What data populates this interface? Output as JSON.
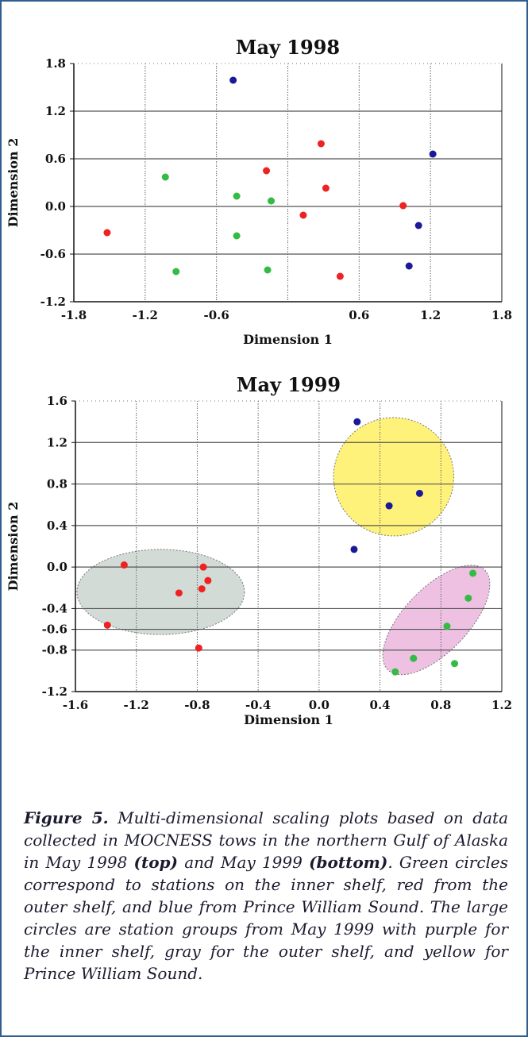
{
  "caption": {
    "label": "Figure 5.",
    "part1": "Multi-dimensional scaling plots based on data collected in MOCNESS tows in the northern Gulf of Alaska in May 1998",
    "top": "(top)",
    "part2": "and May 1999",
    "bottom": "(bottom)",
    "part3": ". Green circles correspond to stations on the inner shelf, red from the outer shelf, and blue from Prince William Sound. The large circles are station groups from May 1999 with purple for the inner shelf, gray for the outer shelf, and yellow for Prince William Sound."
  },
  "colors": {
    "frame": "#2f5e8f",
    "green": "#33bb44",
    "red": "#ee2222",
    "blue": "#1a1a99",
    "yellow_group": "#fff27a",
    "gray_group": "#d2dbd6",
    "purple_group": "#eec0e2"
  },
  "chart_data": [
    {
      "type": "scatter",
      "title": "May 1998",
      "xlabel": "Dimension 1",
      "ylabel": "Dimension 2",
      "xlim": [
        -1.8,
        1.8
      ],
      "ylim": [
        -1.2,
        1.8
      ],
      "xticks": [
        "-1.8",
        "-1.2",
        "-0.6",
        "0.6",
        "1.2",
        "1.8"
      ],
      "yticks": [
        "1.8",
        "1.2",
        "0.6",
        "0.0",
        "-0.6",
        "-1.2"
      ],
      "grid": true,
      "series": [
        {
          "color": "green",
          "points": [
            [
              -1.03,
              0.37
            ],
            [
              -0.43,
              0.13
            ],
            [
              -0.14,
              0.07
            ],
            [
              -0.43,
              -0.37
            ],
            [
              -0.94,
              -0.82
            ],
            [
              -0.17,
              -0.8
            ]
          ]
        },
        {
          "color": "red",
          "points": [
            [
              -1.52,
              -0.33
            ],
            [
              -0.18,
              0.45
            ],
            [
              0.28,
              0.79
            ],
            [
              0.32,
              0.23
            ],
            [
              0.13,
              -0.11
            ],
            [
              0.97,
              0.01
            ],
            [
              0.44,
              -0.88
            ]
          ]
        },
        {
          "color": "blue",
          "points": [
            [
              -0.46,
              1.59
            ],
            [
              1.22,
              0.66
            ],
            [
              1.1,
              -0.24
            ],
            [
              1.02,
              -0.75
            ]
          ]
        }
      ]
    },
    {
      "type": "scatter",
      "title": "May 1999",
      "xlabel": "Dimension 1",
      "ylabel": "Dimension 2",
      "xlim": [
        -1.6,
        1.2
      ],
      "ylim": [
        -1.2,
        1.6
      ],
      "xticks": [
        "-1.6",
        "-1.2",
        "-0.8",
        "-0.4",
        "0.0",
        "0.4",
        "0.8",
        "1.2"
      ],
      "yticks": [
        "1.6",
        "1.2",
        "0.8",
        "0.4",
        "0.0",
        "-0.4",
        "-0.6",
        "-0.8",
        "-1.2"
      ],
      "grid": true,
      "groups": [
        {
          "color": "gray_group",
          "center": [
            -1.04,
            -0.24
          ],
          "rx": 0.55,
          "ry": 0.41,
          "rotate": 0
        },
        {
          "color": "yellow_group",
          "center": [
            0.49,
            0.87
          ],
          "rx": 0.395,
          "ry": 0.57,
          "rotate": 0
        },
        {
          "color": "purple_group",
          "center": [
            0.77,
            -0.51
          ],
          "rx": 0.21,
          "ry": 0.67,
          "rotate": 44
        }
      ],
      "series": [
        {
          "color": "red",
          "points": [
            [
              -1.28,
              0.02
            ],
            [
              -0.76,
              0.0
            ],
            [
              -0.73,
              -0.13
            ],
            [
              -0.77,
              -0.21
            ],
            [
              -0.92,
              -0.25
            ],
            [
              -1.39,
              -0.56
            ],
            [
              -0.79,
              -0.78
            ]
          ]
        },
        {
          "color": "blue",
          "points": [
            [
              0.25,
              1.4
            ],
            [
              0.46,
              0.59
            ],
            [
              0.66,
              0.71
            ],
            [
              0.23,
              0.17
            ]
          ]
        },
        {
          "color": "green",
          "points": [
            [
              1.01,
              -0.06
            ],
            [
              0.98,
              -0.3
            ],
            [
              0.84,
              -0.57
            ],
            [
              0.89,
              -0.93
            ],
            [
              0.62,
              -0.88
            ],
            [
              0.5,
              -1.01
            ]
          ]
        }
      ]
    }
  ]
}
